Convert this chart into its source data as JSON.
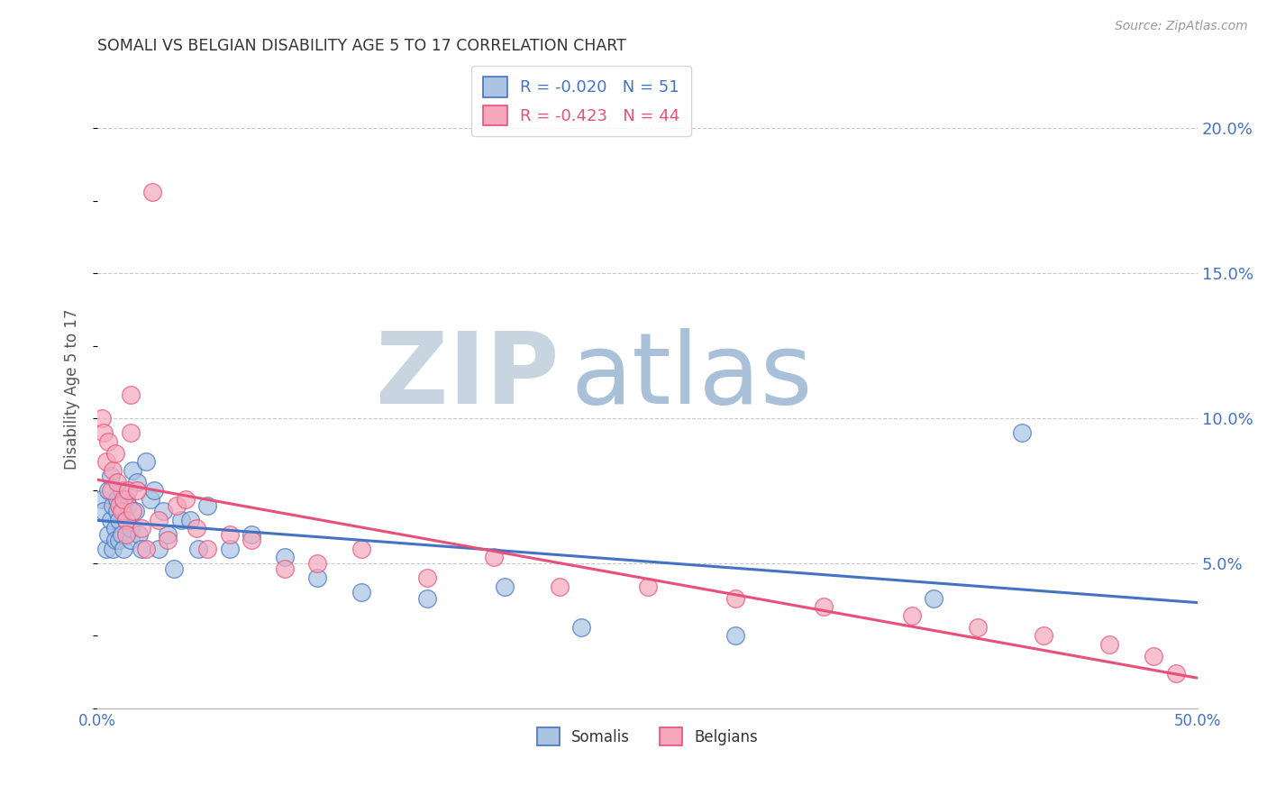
{
  "title": "SOMALI VS BELGIAN DISABILITY AGE 5 TO 17 CORRELATION CHART",
  "source": "Source: ZipAtlas.com",
  "ylabel": "Disability Age 5 to 17",
  "xlim": [
    0.0,
    0.5
  ],
  "ylim": [
    0.0,
    0.22
  ],
  "yticks": [
    0.05,
    0.1,
    0.15,
    0.2
  ],
  "ytick_labels": [
    "5.0%",
    "10.0%",
    "15.0%",
    "20.0%"
  ],
  "xticks": [
    0.0,
    0.1,
    0.2,
    0.3,
    0.4,
    0.5
  ],
  "xtick_labels": [
    "0.0%",
    "",
    "",
    "",
    "",
    "50.0%"
  ],
  "somali_r": -0.02,
  "somali_n": 51,
  "belgian_r": -0.423,
  "belgian_n": 44,
  "somali_color": "#aac4e2",
  "belgian_color": "#f5a8bc",
  "somali_line_color": "#4472c4",
  "belgian_line_color": "#e8507a",
  "tick_color": "#4472c4",
  "grid_color": "#c8c8c8",
  "watermark_zip_color": "#c8d4e0",
  "watermark_atlas_color": "#a8c0d8",
  "somali_x": [
    0.002,
    0.003,
    0.004,
    0.005,
    0.005,
    0.006,
    0.006,
    0.007,
    0.007,
    0.008,
    0.008,
    0.009,
    0.009,
    0.01,
    0.01,
    0.011,
    0.011,
    0.012,
    0.012,
    0.013,
    0.013,
    0.014,
    0.015,
    0.015,
    0.016,
    0.017,
    0.018,
    0.019,
    0.02,
    0.022,
    0.024,
    0.026,
    0.028,
    0.03,
    0.032,
    0.035,
    0.038,
    0.042,
    0.046,
    0.05,
    0.06,
    0.07,
    0.085,
    0.1,
    0.12,
    0.15,
    0.185,
    0.22,
    0.29,
    0.38,
    0.42
  ],
  "somali_y": [
    0.072,
    0.068,
    0.055,
    0.075,
    0.06,
    0.08,
    0.065,
    0.07,
    0.055,
    0.062,
    0.058,
    0.068,
    0.072,
    0.058,
    0.065,
    0.075,
    0.06,
    0.068,
    0.055,
    0.072,
    0.065,
    0.07,
    0.058,
    0.062,
    0.082,
    0.068,
    0.078,
    0.06,
    0.055,
    0.085,
    0.072,
    0.075,
    0.055,
    0.068,
    0.06,
    0.048,
    0.065,
    0.065,
    0.055,
    0.07,
    0.055,
    0.06,
    0.052,
    0.045,
    0.04,
    0.038,
    0.042,
    0.028,
    0.025,
    0.038,
    0.095
  ],
  "belgian_x": [
    0.002,
    0.003,
    0.004,
    0.005,
    0.006,
    0.007,
    0.008,
    0.009,
    0.01,
    0.011,
    0.012,
    0.013,
    0.013,
    0.014,
    0.015,
    0.016,
    0.018,
    0.02,
    0.022,
    0.025,
    0.028,
    0.032,
    0.036,
    0.04,
    0.045,
    0.05,
    0.06,
    0.07,
    0.085,
    0.1,
    0.12,
    0.15,
    0.18,
    0.21,
    0.25,
    0.29,
    0.33,
    0.37,
    0.4,
    0.43,
    0.46,
    0.48,
    0.49,
    0.015
  ],
  "belgian_y": [
    0.1,
    0.095,
    0.085,
    0.092,
    0.075,
    0.082,
    0.088,
    0.078,
    0.07,
    0.068,
    0.072,
    0.065,
    0.06,
    0.075,
    0.095,
    0.068,
    0.075,
    0.062,
    0.055,
    0.178,
    0.065,
    0.058,
    0.07,
    0.072,
    0.062,
    0.055,
    0.06,
    0.058,
    0.048,
    0.05,
    0.055,
    0.045,
    0.052,
    0.042,
    0.042,
    0.038,
    0.035,
    0.032,
    0.028,
    0.025,
    0.022,
    0.018,
    0.012,
    0.108
  ]
}
